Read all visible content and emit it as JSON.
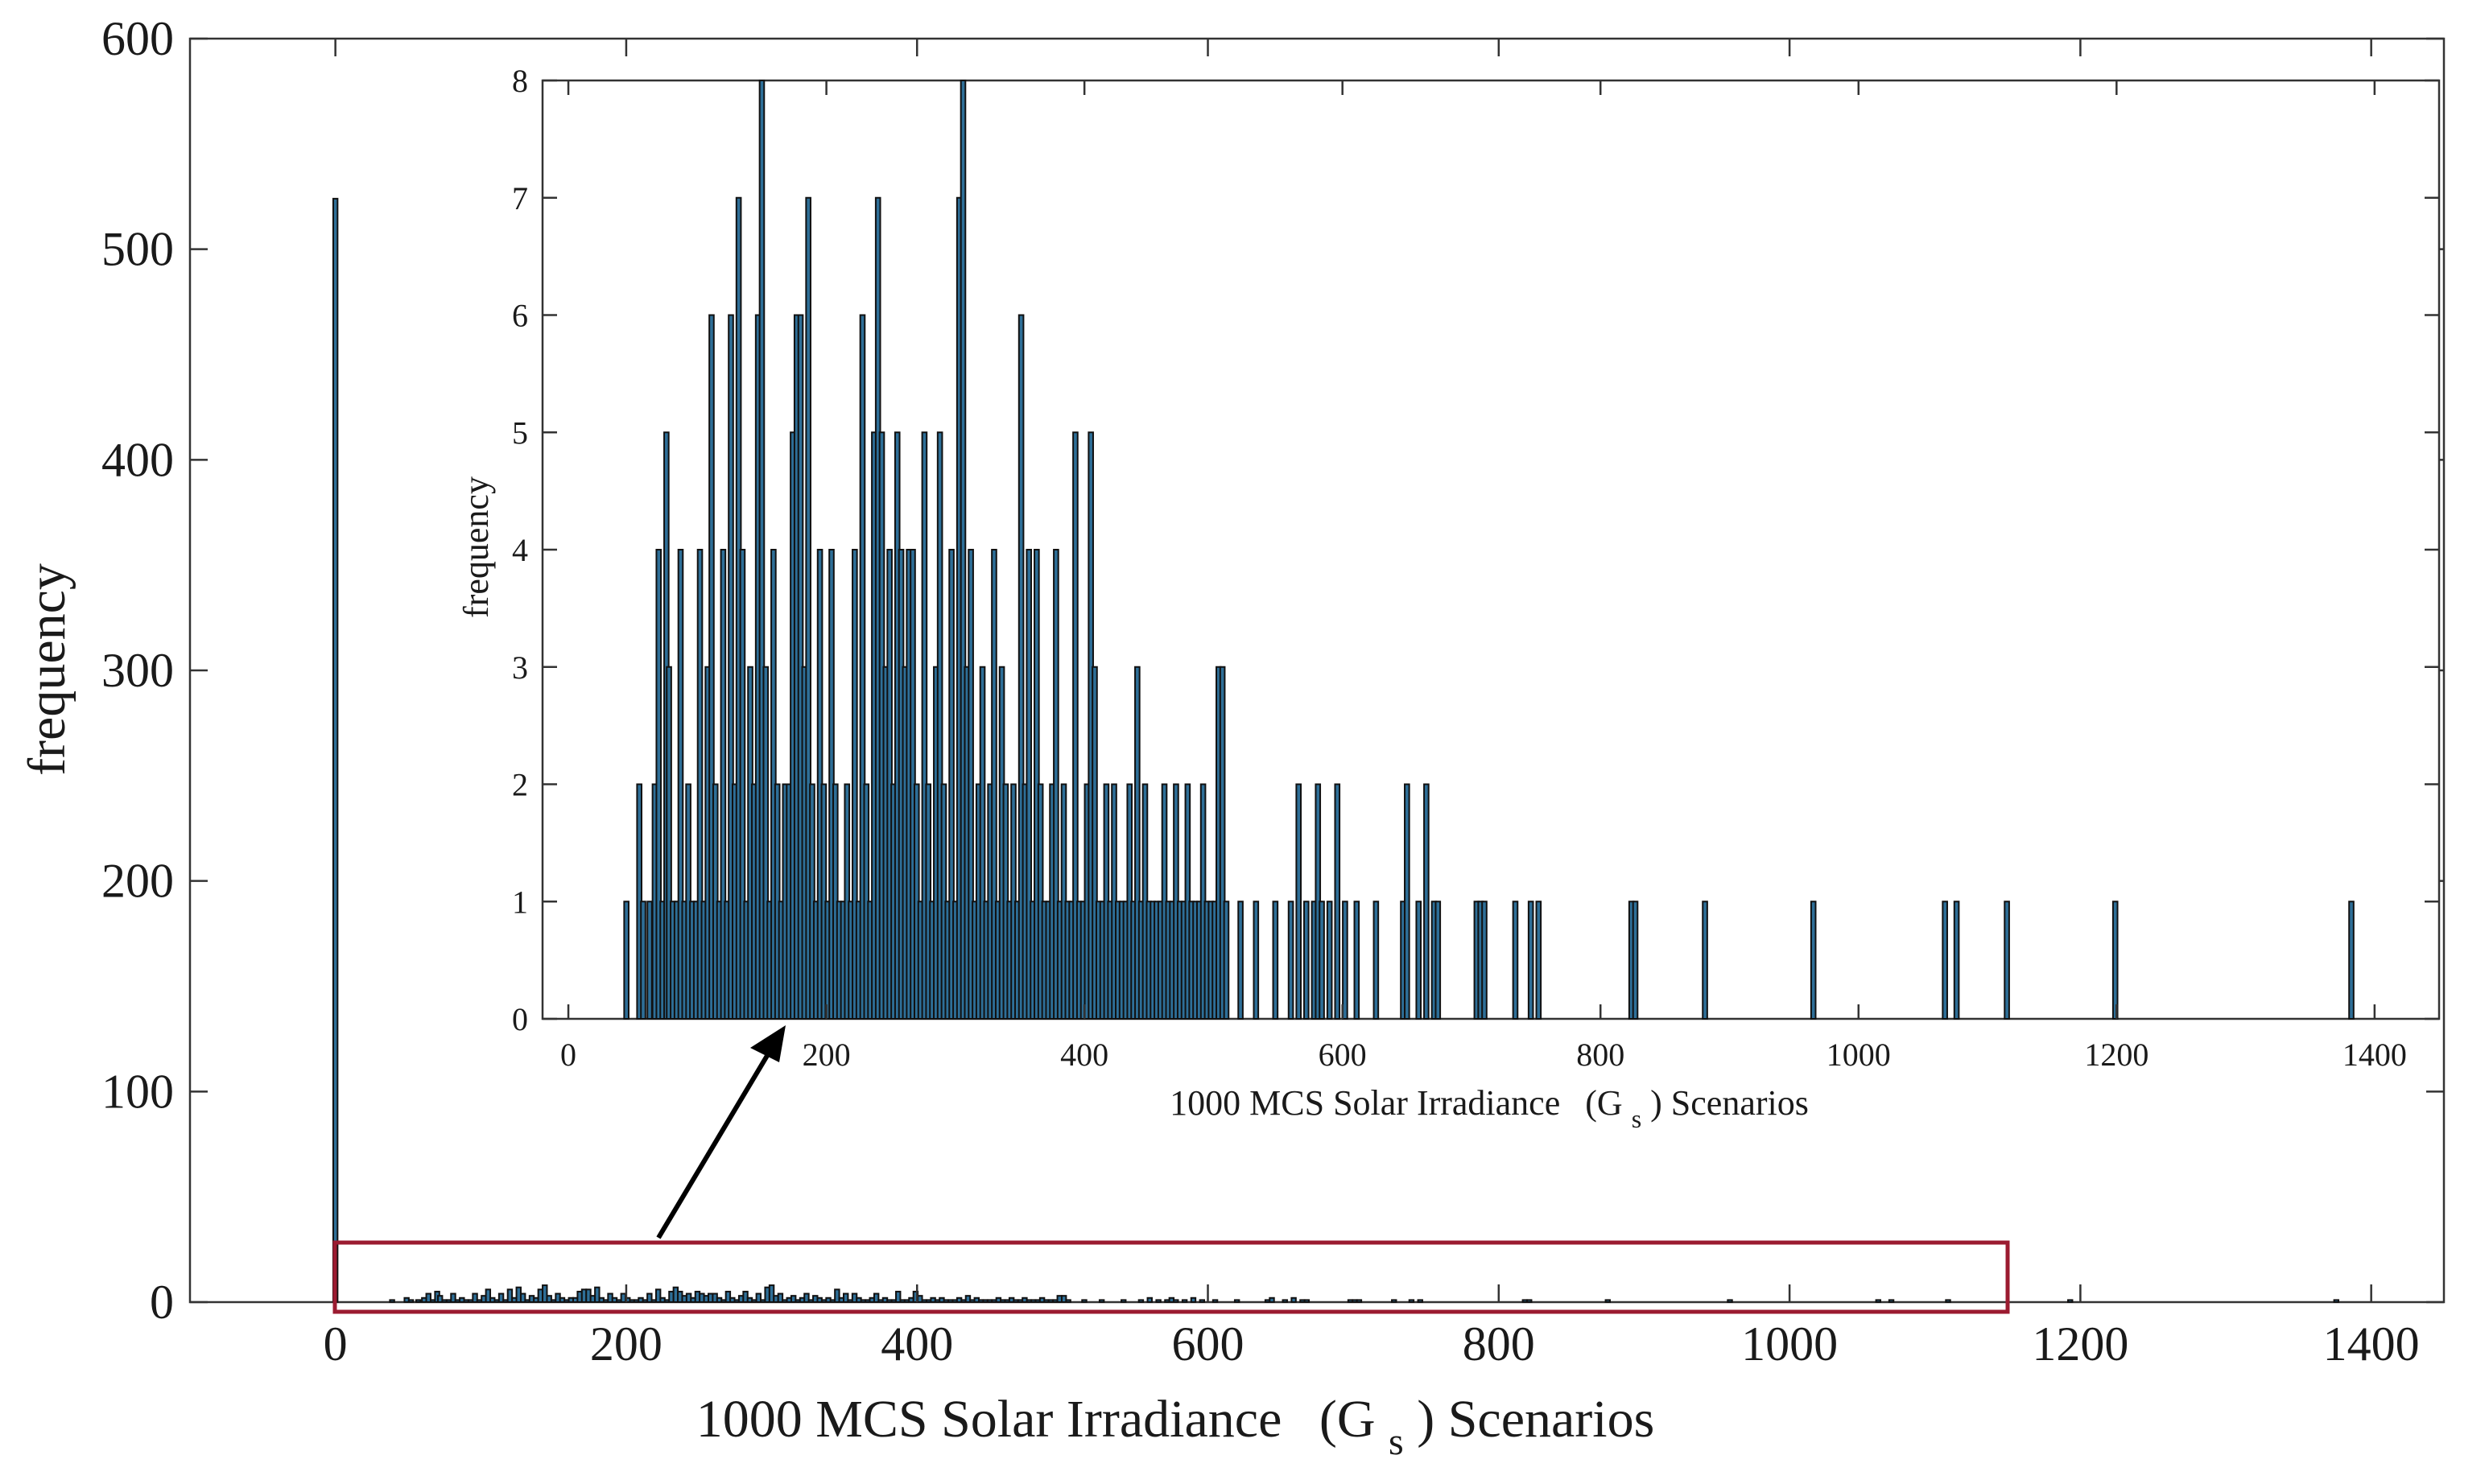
{
  "colors": {
    "bar": "#2e6f98",
    "highlight": "#9b1b30"
  },
  "chart_data": [
    {
      "id": "main",
      "type": "bar",
      "title": "",
      "xlabel": "1000 MCS Solar Irradiance",
      "xlabel_symbol": "(G",
      "xlabel_subscript": "s",
      "xlabel_tail": ") Scenarios",
      "ylabel": "frequency",
      "xlim": [
        -100,
        1450
      ],
      "ylim": [
        0,
        600
      ],
      "xticks": [
        0,
        200,
        400,
        600,
        800,
        1000,
        1200,
        1400
      ],
      "yticks": [
        0,
        100,
        200,
        300,
        400,
        500,
        600
      ],
      "bin_width": 3,
      "bars": [
        [
          0,
          524
        ]
      ],
      "highlight_range_x": [
        30,
        1135
      ],
      "highlight_range_y": [
        -8,
        26
      ],
      "note": "Remaining bars in the highlighted region are the same data as the inset, drawn at the main scale."
    },
    {
      "id": "inset",
      "type": "bar",
      "title": "",
      "xlabel": "1000 MCS Solar Irradiance",
      "xlabel_symbol": "(G",
      "xlabel_subscript": "s",
      "xlabel_tail": ") Scenarios",
      "ylabel": "frequency",
      "xlim": [
        -20,
        1450
      ],
      "ylim": [
        0,
        8
      ],
      "xticks": [
        0,
        200,
        400,
        600,
        800,
        1000,
        1200,
        1400
      ],
      "yticks": [
        0,
        1,
        2,
        3,
        4,
        5,
        6,
        7,
        8
      ],
      "bin_width": 3.5,
      "bars": [
        [
          45,
          1
        ],
        [
          55,
          2
        ],
        [
          58,
          1
        ],
        [
          63,
          1
        ],
        [
          67,
          2
        ],
        [
          70,
          4
        ],
        [
          73,
          1
        ],
        [
          76,
          5
        ],
        [
          78,
          3
        ],
        [
          81,
          1
        ],
        [
          84,
          1
        ],
        [
          87,
          4
        ],
        [
          90,
          1
        ],
        [
          93,
          2
        ],
        [
          96,
          1
        ],
        [
          99,
          1
        ],
        [
          102,
          4
        ],
        [
          105,
          1
        ],
        [
          108,
          3
        ],
        [
          111,
          6
        ],
        [
          114,
          2
        ],
        [
          117,
          1
        ],
        [
          120,
          4
        ],
        [
          123,
          1
        ],
        [
          126,
          6
        ],
        [
          129,
          2
        ],
        [
          132,
          7
        ],
        [
          135,
          4
        ],
        [
          138,
          1
        ],
        [
          141,
          3
        ],
        [
          144,
          2
        ],
        [
          147,
          6
        ],
        [
          150,
          8
        ],
        [
          153,
          3
        ],
        [
          156,
          1
        ],
        [
          159,
          4
        ],
        [
          162,
          2
        ],
        [
          165,
          1
        ],
        [
          168,
          2
        ],
        [
          171,
          2
        ],
        [
          174,
          5
        ],
        [
          177,
          6
        ],
        [
          180,
          6
        ],
        [
          183,
          3
        ],
        [
          186,
          7
        ],
        [
          189,
          2
        ],
        [
          192,
          1
        ],
        [
          195,
          4
        ],
        [
          198,
          2
        ],
        [
          201,
          1
        ],
        [
          204,
          4
        ],
        [
          207,
          2
        ],
        [
          210,
          1
        ],
        [
          213,
          1
        ],
        [
          216,
          2
        ],
        [
          219,
          1
        ],
        [
          222,
          4
        ],
        [
          225,
          1
        ],
        [
          228,
          6
        ],
        [
          231,
          2
        ],
        [
          234,
          1
        ],
        [
          237,
          5
        ],
        [
          240,
          7
        ],
        [
          243,
          5
        ],
        [
          246,
          3
        ],
        [
          249,
          4
        ],
        [
          252,
          2
        ],
        [
          255,
          5
        ],
        [
          258,
          4
        ],
        [
          261,
          3
        ],
        [
          264,
          4
        ],
        [
          267,
          4
        ],
        [
          270,
          2
        ],
        [
          273,
          1
        ],
        [
          276,
          5
        ],
        [
          279,
          2
        ],
        [
          282,
          1
        ],
        [
          285,
          3
        ],
        [
          288,
          5
        ],
        [
          291,
          2
        ],
        [
          294,
          1
        ],
        [
          297,
          4
        ],
        [
          300,
          1
        ],
        [
          303,
          7
        ],
        [
          306,
          8
        ],
        [
          309,
          3
        ],
        [
          312,
          4
        ],
        [
          315,
          1
        ],
        [
          318,
          2
        ],
        [
          321,
          3
        ],
        [
          324,
          1
        ],
        [
          327,
          2
        ],
        [
          330,
          4
        ],
        [
          333,
          1
        ],
        [
          336,
          3
        ],
        [
          339,
          2
        ],
        [
          342,
          1
        ],
        [
          345,
          2
        ],
        [
          348,
          1
        ],
        [
          351,
          6
        ],
        [
          354,
          2
        ],
        [
          357,
          4
        ],
        [
          360,
          1
        ],
        [
          363,
          4
        ],
        [
          366,
          2
        ],
        [
          369,
          1
        ],
        [
          372,
          1
        ],
        [
          375,
          2
        ],
        [
          378,
          4
        ],
        [
          381,
          1
        ],
        [
          384,
          2
        ],
        [
          387,
          1
        ],
        [
          390,
          1
        ],
        [
          393,
          5
        ],
        [
          396,
          1
        ],
        [
          399,
          1
        ],
        [
          402,
          2
        ],
        [
          405,
          5
        ],
        [
          408,
          3
        ],
        [
          411,
          1
        ],
        [
          414,
          1
        ],
        [
          417,
          2
        ],
        [
          420,
          1
        ],
        [
          423,
          2
        ],
        [
          426,
          1
        ],
        [
          429,
          1
        ],
        [
          432,
          1
        ],
        [
          435,
          2
        ],
        [
          438,
          1
        ],
        [
          441,
          3
        ],
        [
          444,
          1
        ],
        [
          447,
          2
        ],
        [
          450,
          1
        ],
        [
          453,
          1
        ],
        [
          456,
          1
        ],
        [
          459,
          1
        ],
        [
          462,
          2
        ],
        [
          465,
          1
        ],
        [
          468,
          1
        ],
        [
          471,
          2
        ],
        [
          474,
          1
        ],
        [
          477,
          1
        ],
        [
          480,
          2
        ],
        [
          483,
          1
        ],
        [
          486,
          1
        ],
        [
          489,
          1
        ],
        [
          492,
          2
        ],
        [
          495,
          1
        ],
        [
          498,
          1
        ],
        [
          501,
          1
        ],
        [
          504,
          3
        ],
        [
          507,
          3
        ],
        [
          510,
          1
        ],
        [
          521,
          1
        ],
        [
          533,
          1
        ],
        [
          548,
          1
        ],
        [
          560,
          1
        ],
        [
          566,
          2
        ],
        [
          572,
          1
        ],
        [
          578,
          1
        ],
        [
          581,
          2
        ],
        [
          584,
          1
        ],
        [
          590,
          1
        ],
        [
          596,
          2
        ],
        [
          602,
          1
        ],
        [
          611,
          1
        ],
        [
          626,
          1
        ],
        [
          647,
          1
        ],
        [
          650,
          2
        ],
        [
          659,
          1
        ],
        [
          665,
          2
        ],
        [
          671,
          1
        ],
        [
          674,
          1
        ],
        [
          704,
          1
        ],
        [
          707,
          1
        ],
        [
          710,
          1
        ],
        [
          734,
          1
        ],
        [
          746,
          1
        ],
        [
          752,
          1
        ],
        [
          824,
          1
        ],
        [
          827,
          1
        ],
        [
          881,
          1
        ],
        [
          965,
          1
        ],
        [
          1067,
          1
        ],
        [
          1076,
          1
        ],
        [
          1115,
          1
        ],
        [
          1199,
          1
        ],
        [
          1382,
          1
        ]
      ]
    }
  ],
  "source_text": {
    "main_ylabel": "frequency",
    "inset_ylabel": "frequency"
  }
}
